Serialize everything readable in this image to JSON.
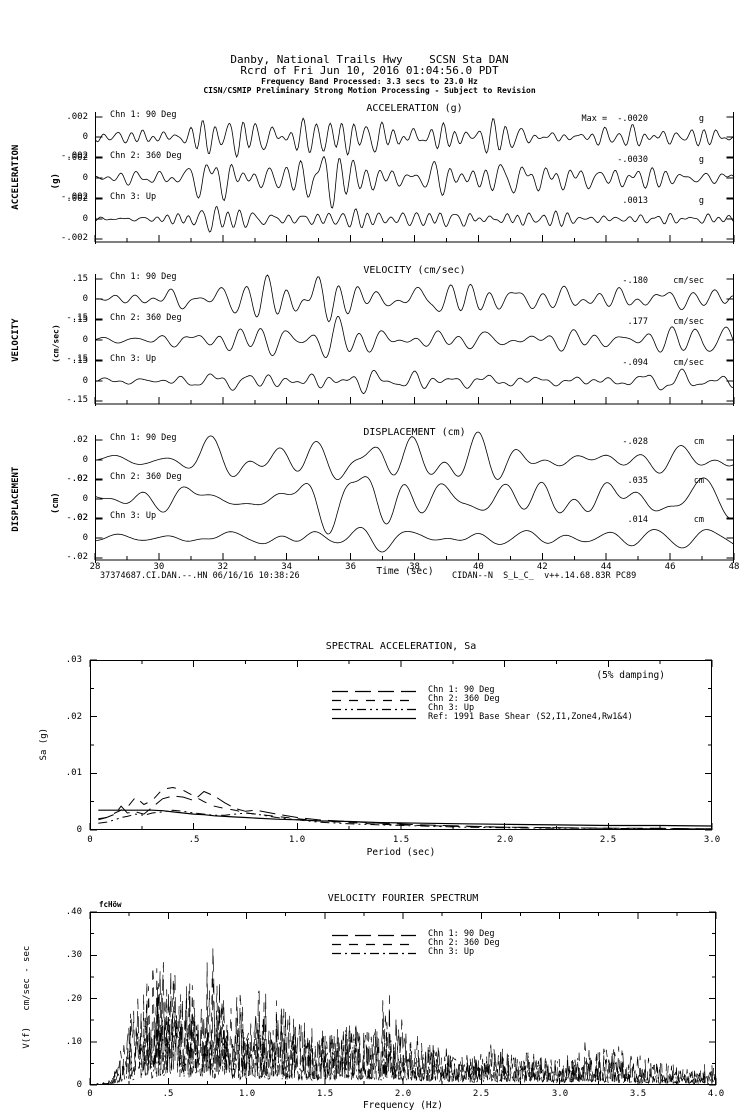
{
  "header": {
    "line1": "Danby, National Trails Hwy    SCSN Sta DAN",
    "line2": "Rcrd of Fri Jun 10, 2016 01:04:56.0 PDT",
    "line3": "Frequency Band Processed: 3.3 secs to 23.0 Hz",
    "line4": "CISN/CSMIP Preliminary Strong Motion Processing - Subject to Revision"
  },
  "footer": {
    "left": "37374687.CI.DAN.--.HN 06/16/16 10:38:26",
    "right": "CIDAN--N  S_L_C_  v++.14.68.83R PC89"
  },
  "time_axis": {
    "label": "Time (sec)",
    "start": 28,
    "end": 48,
    "major_labels": [
      "28",
      "30",
      "32",
      "34",
      "36",
      "38",
      "40",
      "42",
      "44",
      "46",
      "48"
    ]
  },
  "chart_data": [
    {
      "type": "line",
      "id": "acceleration-time-series",
      "title": "ACCELERATION (g)",
      "side_label": "ACCELERATION",
      "side_unit": "(g)",
      "xlabel": "Time (sec)",
      "x_range": [
        28,
        48
      ],
      "y_limit": 0.002,
      "ytick_labels": [
        ".002",
        "0",
        "-.002"
      ],
      "series": [
        {
          "name": "Chn 1: 90 Deg",
          "peak": -0.002,
          "peak_label": "Max =  -.0020",
          "unit": "g",
          "synth": {
            "seed": 11,
            "cycles": 55,
            "amp": 1.0,
            "envelope": [
              [
                0,
                0.25
              ],
              [
                0.05,
                0.3
              ],
              [
                0.12,
                0.6
              ],
              [
                0.2,
                0.95
              ],
              [
                0.3,
                1.0
              ],
              [
                0.4,
                0.85
              ],
              [
                0.5,
                0.8
              ],
              [
                0.6,
                0.7
              ],
              [
                0.7,
                0.6
              ],
              [
                0.8,
                0.55
              ],
              [
                0.9,
                0.5
              ],
              [
                1,
                0.5
              ]
            ]
          }
        },
        {
          "name": "Chn 2: 360 Deg",
          "peak": -0.003,
          "peak_label": "-.0030",
          "unit": "g",
          "synth": {
            "seed": 22,
            "cycles": 50,
            "amp": 1.5,
            "envelope": [
              [
                0,
                0.12
              ],
              [
                0.08,
                0.18
              ],
              [
                0.15,
                0.55
              ],
              [
                0.22,
                0.7
              ],
              [
                0.3,
                0.6
              ],
              [
                0.38,
                1.0
              ],
              [
                0.45,
                0.6
              ],
              [
                0.55,
                0.5
              ],
              [
                0.65,
                0.45
              ],
              [
                0.8,
                0.35
              ],
              [
                1,
                0.3
              ]
            ]
          }
        },
        {
          "name": "Chn 3: Up",
          "peak": 0.0013,
          "peak_label": ".0013",
          "unit": "g",
          "synth": {
            "seed": 33,
            "cycles": 58,
            "amp": 0.65,
            "envelope": [
              [
                0,
                0.2
              ],
              [
                0.08,
                0.3
              ],
              [
                0.15,
                0.85
              ],
              [
                0.25,
                1.0
              ],
              [
                0.35,
                0.75
              ],
              [
                0.5,
                0.6
              ],
              [
                0.65,
                0.5
              ],
              [
                0.8,
                0.45
              ],
              [
                1,
                0.4
              ]
            ]
          }
        }
      ]
    },
    {
      "type": "line",
      "id": "velocity-time-series",
      "title": "VELOCITY (cm/sec)",
      "side_label": "VELOCITY",
      "side_unit": "(cm/sec)",
      "xlabel": "Time (sec)",
      "x_range": [
        28,
        48
      ],
      "y_limit": 0.15,
      "ytick_labels": [
        ".15",
        "0",
        "-.15"
      ],
      "series": [
        {
          "name": "Chn 1: 90 Deg",
          "peak": -0.18,
          "peak_label": "-.180",
          "unit": "cm/sec",
          "synth": {
            "seed": 44,
            "cycles": 30,
            "amp": 1.2,
            "envelope": [
              [
                0,
                0.15
              ],
              [
                0.1,
                0.25
              ],
              [
                0.15,
                0.8
              ],
              [
                0.25,
                0.9
              ],
              [
                0.35,
                1.0
              ],
              [
                0.45,
                0.9
              ],
              [
                0.55,
                0.85
              ],
              [
                0.65,
                0.7
              ],
              [
                0.75,
                0.65
              ],
              [
                0.85,
                0.6
              ],
              [
                0.95,
                0.7
              ],
              [
                1,
                0.75
              ]
            ]
          }
        },
        {
          "name": "Chn 2: 360 Deg",
          "peak": 0.177,
          "peak_label": ".177",
          "unit": "cm/sec",
          "synth": {
            "seed": 55,
            "cycles": 32,
            "amp": 1.18,
            "envelope": [
              [
                0,
                0.15
              ],
              [
                0.08,
                0.2
              ],
              [
                0.14,
                0.7
              ],
              [
                0.2,
                1.0
              ],
              [
                0.3,
                0.6
              ],
              [
                0.38,
                0.9
              ],
              [
                0.45,
                0.55
              ],
              [
                0.55,
                0.6
              ],
              [
                0.65,
                0.5
              ],
              [
                0.75,
                0.45
              ],
              [
                0.85,
                0.5
              ],
              [
                0.95,
                0.65
              ],
              [
                1,
                0.6
              ]
            ]
          }
        },
        {
          "name": "Chn 3: Up",
          "peak": -0.094,
          "peak_label": "-.094",
          "unit": "cm/sec",
          "synth": {
            "seed": 66,
            "cycles": 34,
            "amp": 0.63,
            "envelope": [
              [
                0,
                0.2
              ],
              [
                0.1,
                0.25
              ],
              [
                0.18,
                0.7
              ],
              [
                0.28,
                0.8
              ],
              [
                0.35,
                1.0
              ],
              [
                0.45,
                0.7
              ],
              [
                0.55,
                0.65
              ],
              [
                0.65,
                0.55
              ],
              [
                0.75,
                0.5
              ],
              [
                0.85,
                0.6
              ],
              [
                0.95,
                0.75
              ],
              [
                1,
                0.6
              ]
            ]
          }
        }
      ]
    },
    {
      "type": "line",
      "id": "displacement-time-series",
      "title": "DISPLACEMENT (cm)",
      "side_label": "DISPLACEMENT",
      "side_unit": "(cm)",
      "xlabel": "Time (sec)",
      "x_range": [
        28,
        48
      ],
      "y_limit": 0.02,
      "ytick_labels": [
        ".02",
        "0",
        "-.02"
      ],
      "series": [
        {
          "name": "Chn 1: 90 Deg",
          "peak": -0.028,
          "peak_label": "-.028",
          "unit": "cm",
          "synth": {
            "seed": 77,
            "cycles": 16,
            "amp": 1.4,
            "envelope": [
              [
                0,
                0.15
              ],
              [
                0.1,
                0.3
              ],
              [
                0.17,
                0.8
              ],
              [
                0.25,
                0.7
              ],
              [
                0.35,
                0.6
              ],
              [
                0.45,
                1.0
              ],
              [
                0.55,
                0.8
              ],
              [
                0.65,
                0.7
              ],
              [
                0.75,
                0.6
              ],
              [
                0.85,
                0.55
              ],
              [
                0.95,
                0.6
              ],
              [
                1,
                0.55
              ]
            ]
          }
        },
        {
          "name": "Chn 2: 360 Deg",
          "peak": 0.035,
          "peak_label": ".035",
          "unit": "cm",
          "synth": {
            "seed": 88,
            "cycles": 17,
            "amp": 1.75,
            "envelope": [
              [
                0,
                0.15
              ],
              [
                0.1,
                0.3
              ],
              [
                0.15,
                0.6
              ],
              [
                0.25,
                0.55
              ],
              [
                0.3,
                0.5
              ],
              [
                0.4,
                1.0
              ],
              [
                0.5,
                0.55
              ],
              [
                0.6,
                0.5
              ],
              [
                0.7,
                0.6
              ],
              [
                0.8,
                0.55
              ],
              [
                0.9,
                0.5
              ],
              [
                1,
                0.6
              ]
            ]
          }
        },
        {
          "name": "Chn 3: Up",
          "peak": 0.014,
          "peak_label": ".014",
          "unit": "cm",
          "synth": {
            "seed": 99,
            "cycles": 18,
            "amp": 0.7,
            "envelope": [
              [
                0,
                0.15
              ],
              [
                0.1,
                0.2
              ],
              [
                0.18,
                0.55
              ],
              [
                0.3,
                0.7
              ],
              [
                0.4,
                1.0
              ],
              [
                0.5,
                0.6
              ],
              [
                0.6,
                0.55
              ],
              [
                0.7,
                0.5
              ],
              [
                0.8,
                0.45
              ],
              [
                0.9,
                0.5
              ],
              [
                1,
                0.65
              ]
            ]
          }
        }
      ]
    },
    {
      "type": "line",
      "id": "spectral-acceleration",
      "title": "SPECTRAL ACCELERATION, Sa",
      "annotation": "(5% damping)",
      "xlabel": "Period (sec)",
      "ylabel": "Sa (g)",
      "xlim": [
        0,
        3
      ],
      "ylim": [
        0,
        0.03
      ],
      "xtick_labels": [
        "0",
        ".5",
        "1.0",
        "1.5",
        "2.0",
        "2.5",
        "3.0"
      ],
      "ytick_labels": [
        ".03",
        ".02",
        ".01",
        "0"
      ],
      "legend": [
        {
          "name": "Chn 1: 90 Deg",
          "dash": "16,7"
        },
        {
          "name": "Chn 2: 360 Deg",
          "dash": "9,8"
        },
        {
          "name": "Chn 3: Up",
          "dash": "9,4,2,4,2,4"
        },
        {
          "name": "Ref: 1991 Base Shear (S2,I1,Zone4,Rw1&4)",
          "dash": ""
        }
      ],
      "x": [
        0.04,
        0.08,
        0.12,
        0.15,
        0.18,
        0.22,
        0.26,
        0.3,
        0.35,
        0.4,
        0.45,
        0.5,
        0.55,
        0.6,
        0.65,
        0.7,
        0.75,
        0.8,
        0.9,
        1.0,
        1.1,
        1.25,
        1.4,
        1.6,
        1.8,
        2.0,
        2.25,
        2.5,
        2.75,
        3.0
      ],
      "series": [
        {
          "name": "Chn 1: 90 Deg",
          "y": [
            0.002,
            0.0022,
            0.0028,
            0.0042,
            0.003,
            0.0032,
            0.0028,
            0.004,
            0.0055,
            0.006,
            0.0058,
            0.0052,
            0.0068,
            0.006,
            0.0048,
            0.0038,
            0.0033,
            0.0035,
            0.0028,
            0.0022,
            0.0018,
            0.0015,
            0.0012,
            0.0009,
            0.0007,
            0.0005,
            0.0004,
            0.0003,
            0.0003,
            0.0002
          ]
        },
        {
          "name": "Chn 2: 360 Deg",
          "y": [
            0.0018,
            0.0022,
            0.003,
            0.0035,
            0.004,
            0.0058,
            0.0045,
            0.0052,
            0.0072,
            0.0075,
            0.007,
            0.006,
            0.005,
            0.0042,
            0.0038,
            0.0035,
            0.003,
            0.0028,
            0.0024,
            0.002,
            0.0016,
            0.0013,
            0.001,
            0.0008,
            0.0006,
            0.0005,
            0.0004,
            0.0003,
            0.0002,
            0.0002
          ]
        },
        {
          "name": "Chn 3: Up",
          "y": [
            0.0012,
            0.0014,
            0.0018,
            0.0022,
            0.0024,
            0.0028,
            0.0026,
            0.003,
            0.0032,
            0.0035,
            0.0033,
            0.003,
            0.0028,
            0.0026,
            0.0026,
            0.0028,
            0.003,
            0.0028,
            0.0022,
            0.0018,
            0.0014,
            0.0011,
            0.0009,
            0.0007,
            0.0005,
            0.0004,
            0.0003,
            0.0003,
            0.0002,
            0.0002
          ]
        },
        {
          "name": "Ref: 1991 Base Shear (S2,I1,Zone4,Rw1&4)",
          "y": [
            0.0035,
            0.0035,
            0.0035,
            0.0035,
            0.0035,
            0.0035,
            0.0035,
            0.0035,
            0.0034,
            0.0032,
            0.003,
            0.0028,
            0.0027,
            0.0025,
            0.0024,
            0.0023,
            0.0022,
            0.0021,
            0.0019,
            0.0018,
            0.0016,
            0.0015,
            0.0013,
            0.0012,
            0.0011,
            0.001,
            0.0009,
            0.0008,
            0.0008,
            0.0007
          ]
        }
      ]
    },
    {
      "type": "line",
      "id": "velocity-fourier-spectrum",
      "title": "VELOCITY FOURIER SPECTRUM",
      "corner_label": "fcHöw",
      "xlabel": "Frequency (Hz)",
      "ylabel": "V(f)   cm/sec - sec",
      "xlim": [
        0,
        4
      ],
      "ylim": [
        0,
        0.4
      ],
      "xtick_labels": [
        "0",
        ".5",
        "1.0",
        "1.5",
        "2.0",
        "2.5",
        "3.0",
        "3.5",
        "4.0"
      ],
      "ytick_labels": [
        ".40",
        ".30",
        ".20",
        ".10",
        "0"
      ],
      "legend": [
        {
          "name": "Chn 1: 90 Deg",
          "dash": "16,7"
        },
        {
          "name": "Chn 2: 360 Deg",
          "dash": "9,8"
        },
        {
          "name": "Chn 3: Up",
          "dash": "9,4,2,4"
        }
      ],
      "envelope_x": [
        0,
        0.12,
        0.18,
        0.25,
        0.32,
        0.4,
        0.48,
        0.55,
        0.62,
        0.7,
        0.8,
        0.9,
        1.0,
        1.1,
        1.2,
        1.35,
        1.5,
        1.65,
        1.8,
        1.9,
        2.0,
        2.1,
        2.25,
        2.4,
        2.6,
        2.8,
        3.0,
        3.2,
        3.4,
        3.6,
        3.8,
        4.0
      ],
      "series": [
        {
          "name": "Chn 1: 90 Deg",
          "seed": 7,
          "envelope_y": [
            0,
            0.01,
            0.05,
            0.14,
            0.22,
            0.24,
            0.3,
            0.26,
            0.24,
            0.28,
            0.3,
            0.22,
            0.2,
            0.22,
            0.18,
            0.16,
            0.13,
            0.15,
            0.13,
            0.23,
            0.14,
            0.1,
            0.09,
            0.08,
            0.09,
            0.07,
            0.06,
            0.1,
            0.07,
            0.05,
            0.04,
            0.05
          ]
        },
        {
          "name": "Chn 2: 360 Deg",
          "seed": 8,
          "envelope_y": [
            0,
            0.01,
            0.06,
            0.16,
            0.26,
            0.3,
            0.24,
            0.28,
            0.22,
            0.26,
            0.24,
            0.2,
            0.22,
            0.18,
            0.2,
            0.14,
            0.12,
            0.14,
            0.12,
            0.16,
            0.12,
            0.11,
            0.08,
            0.07,
            0.08,
            0.06,
            0.05,
            0.08,
            0.09,
            0.06,
            0.04,
            0.04
          ]
        },
        {
          "name": "Chn 3: Up",
          "seed": 9,
          "envelope_y": [
            0,
            0.01,
            0.04,
            0.1,
            0.14,
            0.16,
            0.18,
            0.2,
            0.16,
            0.18,
            0.16,
            0.14,
            0.12,
            0.14,
            0.12,
            0.1,
            0.1,
            0.12,
            0.1,
            0.12,
            0.1,
            0.09,
            0.07,
            0.06,
            0.07,
            0.08,
            0.06,
            0.07,
            0.05,
            0.04,
            0.03,
            0.03
          ]
        }
      ]
    }
  ]
}
